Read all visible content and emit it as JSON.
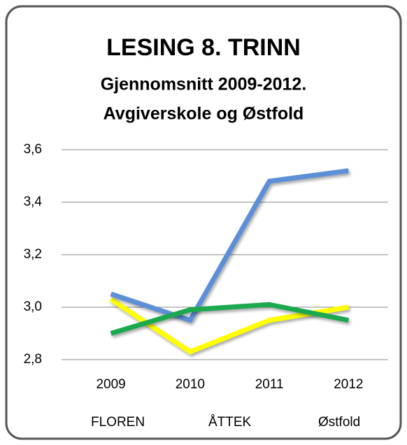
{
  "chart_data": {
    "type": "line",
    "title": "LESING 8. TRINN",
    "subtitle": [
      "Gjennomsnitt 2009-2012.",
      "Avgiverskole og Østfold"
    ],
    "categories": [
      "2009",
      "2010",
      "2011",
      "2012"
    ],
    "series": [
      {
        "name": "FLOREN",
        "color": "#ffff00",
        "values": [
          3.03,
          2.83,
          2.95,
          3.0
        ]
      },
      {
        "name": "ÅTTEK",
        "color": "#5b8fd6",
        "values": [
          3.05,
          2.95,
          3.48,
          3.52
        ]
      },
      {
        "name": "Østfold",
        "color": "#1fa84f",
        "values": [
          2.9,
          2.99,
          3.01,
          2.95
        ]
      }
    ],
    "ylim": [
      2.8,
      3.6
    ],
    "yticks": [
      {
        "value": 2.8,
        "label": "2,8"
      },
      {
        "value": 3.0,
        "label": "3,0"
      },
      {
        "value": 3.2,
        "label": "3,2"
      },
      {
        "value": 3.4,
        "label": "3,4"
      },
      {
        "value": 3.6,
        "label": "3,6"
      }
    ],
    "grid": true,
    "legend": "bottom"
  }
}
